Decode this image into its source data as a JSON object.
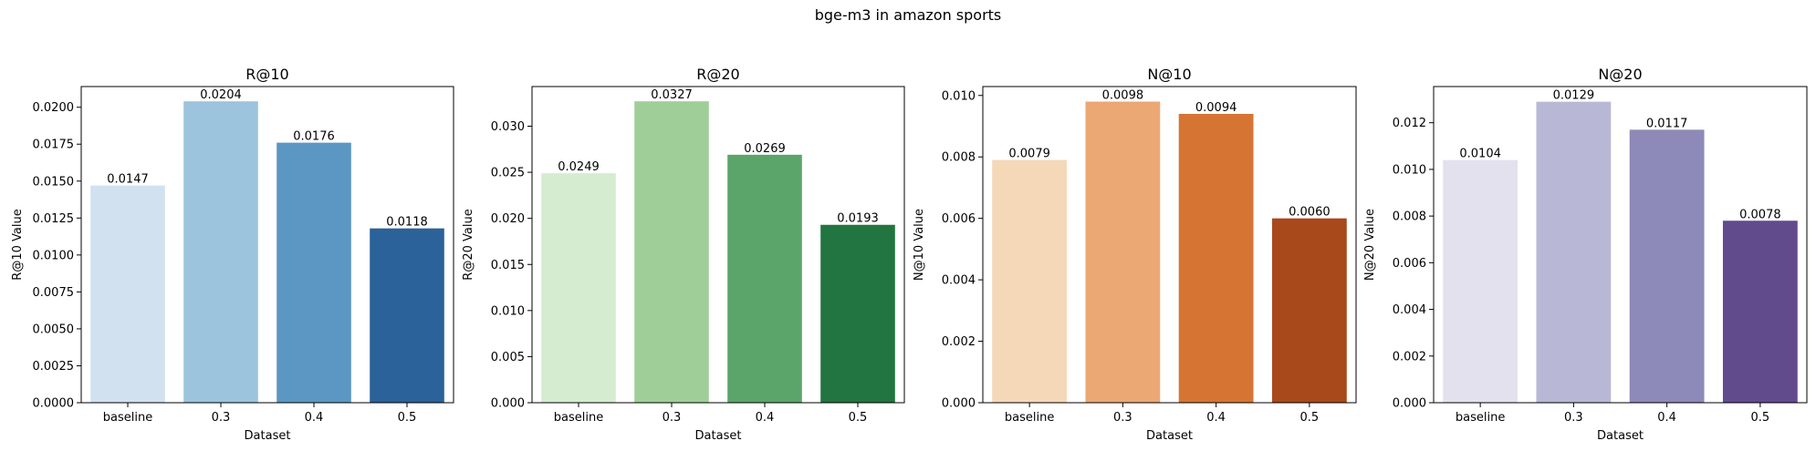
{
  "figure": {
    "suptitle": "bge-m3 in amazon sports"
  },
  "chart_data": [
    {
      "type": "bar",
      "title": "R@10",
      "xlabel": "Dataset",
      "ylabel": "R@10 Value",
      "categories": [
        "baseline",
        "0.3",
        "0.4",
        "0.5"
      ],
      "values": [
        0.0147,
        0.0204,
        0.0176,
        0.0118
      ],
      "value_labels": [
        "0.0147",
        "0.0204",
        "0.0176",
        "0.0118"
      ],
      "ylim": [
        0,
        0.0214
      ],
      "yticks": [
        0,
        0.0025,
        0.005,
        0.0075,
        0.01,
        0.0125,
        0.015,
        0.0175,
        0.02
      ],
      "ytick_labels": [
        "0.0000",
        "0.0025",
        "0.0050",
        "0.0075",
        "0.0100",
        "0.0125",
        "0.0150",
        "0.0175",
        "0.0200"
      ],
      "colors": [
        "#d2e1f0",
        "#9cc4dc",
        "#5b97c2",
        "#2b6299"
      ]
    },
    {
      "type": "bar",
      "title": "R@20",
      "xlabel": "Dataset",
      "ylabel": "R@20 Value",
      "categories": [
        "baseline",
        "0.3",
        "0.4",
        "0.5"
      ],
      "values": [
        0.0249,
        0.0327,
        0.0269,
        0.0193
      ],
      "value_labels": [
        "0.0249",
        "0.0327",
        "0.0269",
        "0.0193"
      ],
      "ylim": [
        0,
        0.0343
      ],
      "yticks": [
        0,
        0.005,
        0.01,
        0.015,
        0.02,
        0.025,
        0.03
      ],
      "ytick_labels": [
        "0.000",
        "0.005",
        "0.010",
        "0.015",
        "0.020",
        "0.025",
        "0.030"
      ],
      "colors": [
        "#d5ecd1",
        "#a0ce99",
        "#5ba56a",
        "#227540"
      ]
    },
    {
      "type": "bar",
      "title": "N@10",
      "xlabel": "Dataset",
      "ylabel": "N@10 Value",
      "categories": [
        "baseline",
        "0.3",
        "0.4",
        "0.5"
      ],
      "values": [
        0.0079,
        0.0098,
        0.0094,
        0.006
      ],
      "value_labels": [
        "0.0079",
        "0.0098",
        "0.0094",
        "0.0060"
      ],
      "ylim": [
        0,
        0.01029
      ],
      "yticks": [
        0,
        0.002,
        0.004,
        0.006,
        0.008,
        0.01
      ],
      "ytick_labels": [
        "0.000",
        "0.002",
        "0.004",
        "0.006",
        "0.008",
        "0.010"
      ],
      "colors": [
        "#f4d8b8",
        "#eba874",
        "#d67533",
        "#a8491b"
      ]
    },
    {
      "type": "bar",
      "title": "N@20",
      "xlabel": "Dataset",
      "ylabel": "N@20 Value",
      "categories": [
        "baseline",
        "0.3",
        "0.4",
        "0.5"
      ],
      "values": [
        0.0104,
        0.0129,
        0.0117,
        0.0078
      ],
      "value_labels": [
        "0.0104",
        "0.0129",
        "0.0117",
        "0.0078"
      ],
      "ylim": [
        0,
        0.01355
      ],
      "yticks": [
        0,
        0.002,
        0.004,
        0.006,
        0.008,
        0.01,
        0.012
      ],
      "ytick_labels": [
        "0.000",
        "0.002",
        "0.004",
        "0.006",
        "0.008",
        "0.010",
        "0.012"
      ],
      "colors": [
        "#e3e1ee",
        "#b8b8d6",
        "#8d89b8",
        "#624b8d"
      ]
    }
  ]
}
